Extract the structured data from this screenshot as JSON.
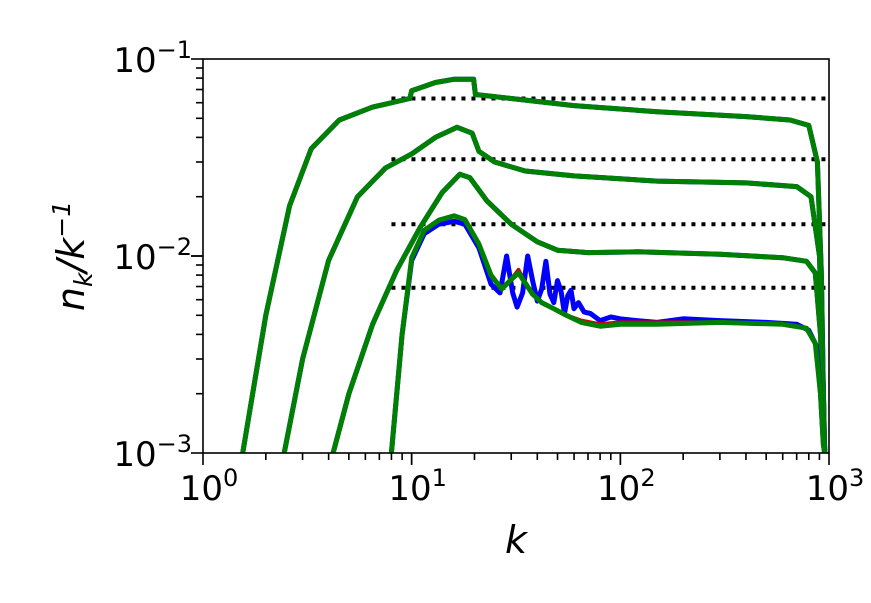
{
  "chart_data": {
    "type": "line",
    "title": "",
    "xlabel": "k",
    "ylabel": "n_k/k^-1",
    "xscale": "log",
    "yscale": "log",
    "xlim": [
      1,
      1000
    ],
    "ylim": [
      0.001,
      0.1
    ],
    "grid": false,
    "x_ticks": [
      {
        "value": 1,
        "base": "10",
        "exp": "0"
      },
      {
        "value": 10,
        "base": "10",
        "exp": "1"
      },
      {
        "value": 100,
        "base": "10",
        "exp": "2"
      },
      {
        "value": 1000,
        "base": "10",
        "exp": "3"
      }
    ],
    "y_ticks": [
      {
        "value": 0.001,
        "base": "10",
        "exp": "−3"
      },
      {
        "value": 0.01,
        "base": "10",
        "exp": "−2"
      },
      {
        "value": 0.1,
        "base": "10",
        "exp": "−1"
      }
    ],
    "reference_lines": {
      "style": "dotted",
      "color": "#000000",
      "x_range": [
        8,
        1000
      ],
      "y_values": [
        0.063,
        0.031,
        0.0145,
        0.0069
      ]
    },
    "series_colors": [
      "#0000ff",
      "#d00000",
      "#008000"
    ],
    "curve_groups": [
      {
        "blue": [
          [
            1.55,
            0.001
          ],
          [
            2.0,
            0.005
          ],
          [
            2.6,
            0.018
          ],
          [
            3.3,
            0.035
          ],
          [
            4.5,
            0.049
          ],
          [
            6.5,
            0.057
          ],
          [
            9.8,
            0.063
          ],
          [
            10.0,
            0.069
          ],
          [
            13.0,
            0.076
          ],
          [
            16.0,
            0.079
          ],
          [
            19.8,
            0.079
          ],
          [
            20.2,
            0.066
          ],
          [
            30.0,
            0.063
          ],
          [
            60.0,
            0.058
          ],
          [
            150.0,
            0.054
          ],
          [
            400.0,
            0.051
          ],
          [
            650.0,
            0.049
          ],
          [
            800.0,
            0.046
          ],
          [
            880.0,
            0.03
          ],
          [
            920.0,
            0.008
          ],
          [
            950.0,
            0.001
          ]
        ],
        "red": [
          [
            1.55,
            0.001
          ],
          [
            2.0,
            0.005
          ],
          [
            2.6,
            0.018
          ],
          [
            3.3,
            0.035
          ],
          [
            4.5,
            0.049
          ],
          [
            6.5,
            0.057
          ],
          [
            9.8,
            0.063
          ],
          [
            10.0,
            0.069
          ],
          [
            13.0,
            0.076
          ],
          [
            16.0,
            0.079
          ],
          [
            19.8,
            0.079
          ],
          [
            20.2,
            0.066
          ],
          [
            30.0,
            0.063
          ],
          [
            60.0,
            0.058
          ],
          [
            150.0,
            0.054
          ],
          [
            400.0,
            0.051
          ],
          [
            650.0,
            0.049
          ],
          [
            800.0,
            0.046
          ],
          [
            880.0,
            0.03
          ],
          [
            920.0,
            0.008
          ],
          [
            950.0,
            0.001
          ]
        ],
        "green": [
          [
            1.55,
            0.001
          ],
          [
            2.0,
            0.005
          ],
          [
            2.6,
            0.018
          ],
          [
            3.3,
            0.035
          ],
          [
            4.5,
            0.049
          ],
          [
            6.5,
            0.057
          ],
          [
            9.8,
            0.063
          ],
          [
            10.0,
            0.069
          ],
          [
            13.0,
            0.076
          ],
          [
            16.0,
            0.079
          ],
          [
            19.8,
            0.079
          ],
          [
            20.2,
            0.066
          ],
          [
            30.0,
            0.063
          ],
          [
            60.0,
            0.058
          ],
          [
            150.0,
            0.054
          ],
          [
            400.0,
            0.051
          ],
          [
            650.0,
            0.049
          ],
          [
            800.0,
            0.046
          ],
          [
            880.0,
            0.03
          ],
          [
            920.0,
            0.008
          ],
          [
            950.0,
            0.001
          ]
        ]
      },
      {
        "blue": [
          [
            2.45,
            0.001
          ],
          [
            3.0,
            0.003
          ],
          [
            4.0,
            0.0095
          ],
          [
            5.5,
            0.02
          ],
          [
            7.5,
            0.028
          ],
          [
            10.0,
            0.033
          ],
          [
            13.0,
            0.04
          ],
          [
            16.5,
            0.045
          ],
          [
            19.5,
            0.042
          ],
          [
            21.0,
            0.034
          ],
          [
            25.0,
            0.03
          ],
          [
            35.0,
            0.027
          ],
          [
            60.0,
            0.0255
          ],
          [
            150.0,
            0.024
          ],
          [
            400.0,
            0.0235
          ],
          [
            700.0,
            0.0225
          ],
          [
            820.0,
            0.02
          ],
          [
            900.0,
            0.01
          ],
          [
            940.0,
            0.002
          ],
          [
            955.0,
            0.001
          ]
        ],
        "red": [
          [
            2.45,
            0.001
          ],
          [
            3.0,
            0.003
          ],
          [
            4.0,
            0.0095
          ],
          [
            5.5,
            0.02
          ],
          [
            7.5,
            0.028
          ],
          [
            10.0,
            0.033
          ],
          [
            13.0,
            0.04
          ],
          [
            16.5,
            0.045
          ],
          [
            19.5,
            0.042
          ],
          [
            21.0,
            0.034
          ],
          [
            25.0,
            0.03
          ],
          [
            35.0,
            0.027
          ],
          [
            60.0,
            0.0255
          ],
          [
            150.0,
            0.024
          ],
          [
            400.0,
            0.0235
          ],
          [
            700.0,
            0.0225
          ],
          [
            820.0,
            0.02
          ],
          [
            900.0,
            0.01
          ],
          [
            940.0,
            0.002
          ],
          [
            955.0,
            0.001
          ]
        ],
        "green": [
          [
            2.45,
            0.001
          ],
          [
            3.0,
            0.003
          ],
          [
            4.0,
            0.0095
          ],
          [
            5.5,
            0.02
          ],
          [
            7.5,
            0.028
          ],
          [
            10.0,
            0.033
          ],
          [
            13.0,
            0.04
          ],
          [
            16.5,
            0.045
          ],
          [
            19.5,
            0.042
          ],
          [
            21.0,
            0.034
          ],
          [
            25.0,
            0.03
          ],
          [
            35.0,
            0.027
          ],
          [
            60.0,
            0.0255
          ],
          [
            150.0,
            0.024
          ],
          [
            400.0,
            0.0235
          ],
          [
            700.0,
            0.0225
          ],
          [
            820.0,
            0.02
          ],
          [
            900.0,
            0.01
          ],
          [
            940.0,
            0.002
          ],
          [
            955.0,
            0.001
          ]
        ]
      },
      {
        "blue": [
          [
            4.2,
            0.001
          ],
          [
            5.0,
            0.002
          ],
          [
            6.5,
            0.0045
          ],
          [
            8.5,
            0.0085
          ],
          [
            11.0,
            0.014
          ],
          [
            14.0,
            0.021
          ],
          [
            17.0,
            0.026
          ],
          [
            19.0,
            0.025
          ],
          [
            23.0,
            0.019
          ],
          [
            30.0,
            0.0145
          ],
          [
            40.0,
            0.0118
          ],
          [
            50.0,
            0.0107
          ],
          [
            70.0,
            0.0104
          ],
          [
            120.0,
            0.0105
          ],
          [
            300.0,
            0.0102
          ],
          [
            600.0,
            0.0098
          ],
          [
            780.0,
            0.0094
          ],
          [
            860.0,
            0.0082
          ],
          [
            910.0,
            0.004
          ],
          [
            940.0,
            0.0015
          ],
          [
            955.0,
            0.001
          ]
        ],
        "red": [
          [
            4.2,
            0.001
          ],
          [
            5.0,
            0.002
          ],
          [
            6.5,
            0.0045
          ],
          [
            8.5,
            0.0085
          ],
          [
            11.0,
            0.014
          ],
          [
            14.0,
            0.021
          ],
          [
            17.0,
            0.026
          ],
          [
            19.0,
            0.025
          ],
          [
            23.0,
            0.019
          ],
          [
            30.0,
            0.0145
          ],
          [
            40.0,
            0.0118
          ],
          [
            50.0,
            0.0107
          ],
          [
            70.0,
            0.0104
          ],
          [
            120.0,
            0.0105
          ],
          [
            300.0,
            0.0102
          ],
          [
            600.0,
            0.0098
          ],
          [
            780.0,
            0.0094
          ],
          [
            860.0,
            0.0082
          ],
          [
            910.0,
            0.004
          ],
          [
            940.0,
            0.0015
          ],
          [
            955.0,
            0.001
          ]
        ],
        "green": [
          [
            4.2,
            0.001
          ],
          [
            5.0,
            0.002
          ],
          [
            6.5,
            0.0045
          ],
          [
            8.5,
            0.0085
          ],
          [
            11.0,
            0.014
          ],
          [
            14.0,
            0.021
          ],
          [
            17.0,
            0.026
          ],
          [
            19.0,
            0.025
          ],
          [
            23.0,
            0.019
          ],
          [
            30.0,
            0.0145
          ],
          [
            40.0,
            0.0118
          ],
          [
            50.0,
            0.0107
          ],
          [
            70.0,
            0.0104
          ],
          [
            120.0,
            0.0105
          ],
          [
            300.0,
            0.0102
          ],
          [
            600.0,
            0.0098
          ],
          [
            780.0,
            0.0094
          ],
          [
            860.0,
            0.0082
          ],
          [
            910.0,
            0.004
          ],
          [
            940.0,
            0.0015
          ],
          [
            955.0,
            0.001
          ]
        ]
      },
      {
        "blue": [
          [
            8.0,
            0.001
          ],
          [
            9.0,
            0.004
          ],
          [
            10.0,
            0.0095
          ],
          [
            11.5,
            0.013
          ],
          [
            13.5,
            0.0145
          ],
          [
            16.0,
            0.015
          ],
          [
            18.0,
            0.0145
          ],
          [
            21.0,
            0.011
          ],
          [
            24.0,
            0.0072
          ],
          [
            26.5,
            0.0065
          ],
          [
            28.5,
            0.01
          ],
          [
            30.5,
            0.0065
          ],
          [
            32.0,
            0.0055
          ],
          [
            34.0,
            0.0065
          ],
          [
            36.0,
            0.01
          ],
          [
            38.0,
            0.0075
          ],
          [
            40.0,
            0.0059
          ],
          [
            42.0,
            0.0068
          ],
          [
            44.0,
            0.0094
          ],
          [
            46.0,
            0.0064
          ],
          [
            48.0,
            0.0058
          ],
          [
            50.0,
            0.0075
          ],
          [
            52.0,
            0.0066
          ],
          [
            54.0,
            0.0051
          ],
          [
            56.0,
            0.0063
          ],
          [
            58.0,
            0.0067
          ],
          [
            60.0,
            0.0054
          ],
          [
            63.0,
            0.0058
          ],
          [
            67.0,
            0.0052
          ],
          [
            72.0,
            0.0051
          ],
          [
            80.0,
            0.0047
          ],
          [
            90.0,
            0.0049
          ],
          [
            100.0,
            0.0048
          ],
          [
            120.0,
            0.0047
          ],
          [
            150.0,
            0.0046
          ],
          [
            200.0,
            0.0048
          ],
          [
            300.0,
            0.0047
          ],
          [
            500.0,
            0.0046
          ],
          [
            700.0,
            0.0045
          ],
          [
            800.0,
            0.0042
          ],
          [
            870.0,
            0.0035
          ],
          [
            910.0,
            0.002
          ],
          [
            940.0,
            0.0011
          ],
          [
            955.0,
            0.001
          ]
        ],
        "red": [
          [
            8.0,
            0.001
          ],
          [
            9.0,
            0.004
          ],
          [
            10.0,
            0.0098
          ],
          [
            11.5,
            0.0135
          ],
          [
            13.5,
            0.0152
          ],
          [
            16.0,
            0.016
          ],
          [
            18.0,
            0.0153
          ],
          [
            21.0,
            0.0115
          ],
          [
            24.0,
            0.008
          ],
          [
            27.0,
            0.0068
          ],
          [
            30.0,
            0.0076
          ],
          [
            32.5,
            0.0085
          ],
          [
            35.0,
            0.0073
          ],
          [
            38.0,
            0.0064
          ],
          [
            42.0,
            0.0058
          ],
          [
            48.0,
            0.0054
          ],
          [
            55.0,
            0.005
          ],
          [
            65.0,
            0.0047
          ],
          [
            80.0,
            0.0045
          ],
          [
            100.0,
            0.0046
          ],
          [
            150.0,
            0.0046
          ],
          [
            300.0,
            0.0046
          ],
          [
            600.0,
            0.0045
          ],
          [
            780.0,
            0.0043
          ],
          [
            860.0,
            0.0036
          ],
          [
            910.0,
            0.002
          ],
          [
            940.0,
            0.0011
          ],
          [
            955.0,
            0.001
          ]
        ],
        "green": [
          [
            8.0,
            0.001
          ],
          [
            9.0,
            0.004
          ],
          [
            10.0,
            0.0098
          ],
          [
            11.5,
            0.0135
          ],
          [
            13.5,
            0.0152
          ],
          [
            16.0,
            0.016
          ],
          [
            18.0,
            0.0153
          ],
          [
            21.0,
            0.0115
          ],
          [
            24.0,
            0.008
          ],
          [
            27.0,
            0.0068
          ],
          [
            30.0,
            0.0076
          ],
          [
            32.5,
            0.0082
          ],
          [
            35.0,
            0.0073
          ],
          [
            38.0,
            0.0064
          ],
          [
            42.0,
            0.0058
          ],
          [
            48.0,
            0.0054
          ],
          [
            55.0,
            0.005
          ],
          [
            65.0,
            0.0046
          ],
          [
            80.0,
            0.0044
          ],
          [
            100.0,
            0.0045
          ],
          [
            150.0,
            0.0045
          ],
          [
            300.0,
            0.0046
          ],
          [
            600.0,
            0.0045
          ],
          [
            780.0,
            0.0043
          ],
          [
            860.0,
            0.0036
          ],
          [
            910.0,
            0.002
          ],
          [
            940.0,
            0.0011
          ],
          [
            955.0,
            0.001
          ]
        ]
      }
    ]
  }
}
